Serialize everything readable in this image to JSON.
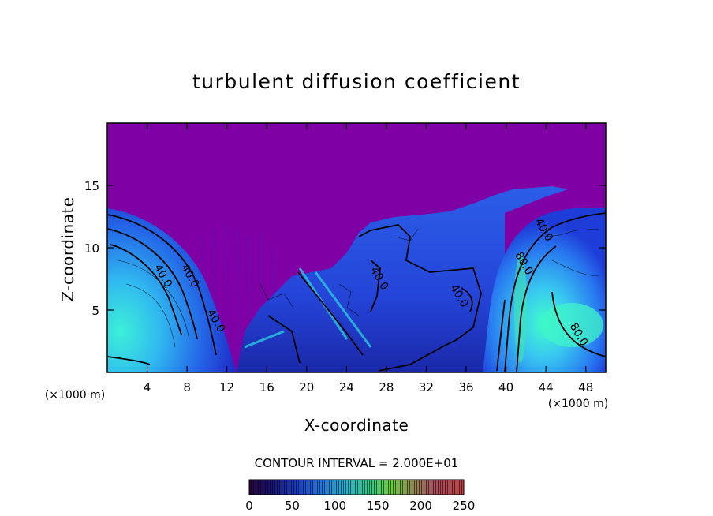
{
  "chart_data": {
    "type": "heatmap",
    "title": "turbulent diffusion coefficient",
    "xlabel": "X-coordinate",
    "ylabel": "Z-coordinate",
    "x_unit_left": "(×1000 m)",
    "x_unit_right": "(×1000 m)",
    "xlim": [
      0,
      50
    ],
    "ylim": [
      0,
      20
    ],
    "xticks": [
      "4",
      "8",
      "12",
      "16",
      "20",
      "24",
      "28",
      "32",
      "36",
      "40",
      "44",
      "48"
    ],
    "xtick_values": [
      4,
      8,
      12,
      16,
      20,
      24,
      28,
      32,
      36,
      40,
      44,
      48
    ],
    "yticks": [
      "5",
      "10",
      "15"
    ],
    "ytick_values": [
      5,
      10,
      15
    ],
    "contour_interval_text": "CONTOUR INTERVAL = 2.000E+01",
    "contour_labels": [
      {
        "text": "40.0",
        "x": 5.3,
        "z": 7.6
      },
      {
        "text": "40.0",
        "x": 8.0,
        "z": 7.6
      },
      {
        "text": "40.0",
        "x": 10.6,
        "z": 4.0
      },
      {
        "text": "40.0",
        "x": 27.0,
        "z": 7.4
      },
      {
        "text": "40.0",
        "x": 35.0,
        "z": 6.0
      },
      {
        "text": "40.0",
        "x": 43.5,
        "z": 11.3
      },
      {
        "text": "80.0",
        "x": 41.5,
        "z": 8.6
      },
      {
        "text": "80.0",
        "x": 47.0,
        "z": 2.9
      }
    ],
    "colorbar": {
      "ticks": [
        "0",
        "50",
        "100",
        "150",
        "200",
        "250"
      ],
      "tick_values": [
        0,
        50,
        100,
        150,
        200,
        250
      ],
      "min": 0,
      "max": 250
    },
    "colors": {
      "background_field": "#7f00a5",
      "low": "#1e1e96",
      "mid": "#2878f0",
      "high": "#3cf0c8"
    }
  }
}
